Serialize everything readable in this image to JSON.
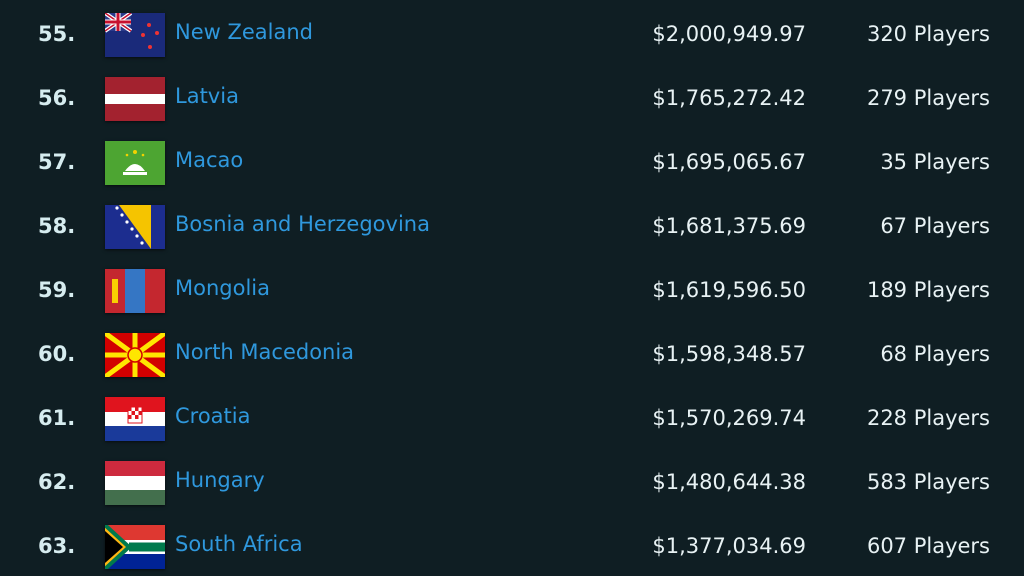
{
  "rows": [
    {
      "rank": "55.",
      "country": "New Zealand",
      "flag": "nz",
      "earnings": "$2,000,949.97",
      "players": "320 Players"
    },
    {
      "rank": "56.",
      "country": "Latvia",
      "flag": "lv",
      "earnings": "$1,765,272.42",
      "players": "279 Players"
    },
    {
      "rank": "57.",
      "country": "Macao",
      "flag": "mo",
      "earnings": "$1,695,065.67",
      "players": "35 Players"
    },
    {
      "rank": "58.",
      "country": "Bosnia and Herzegovina",
      "flag": "ba",
      "earnings": "$1,681,375.69",
      "players": "67 Players"
    },
    {
      "rank": "59.",
      "country": "Mongolia",
      "flag": "mn",
      "earnings": "$1,619,596.50",
      "players": "189 Players"
    },
    {
      "rank": "60.",
      "country": "North Macedonia",
      "flag": "mk",
      "earnings": "$1,598,348.57",
      "players": "68 Players"
    },
    {
      "rank": "61.",
      "country": "Croatia",
      "flag": "hr",
      "earnings": "$1,570,269.74",
      "players": "228 Players"
    },
    {
      "rank": "62.",
      "country": "Hungary",
      "flag": "hu",
      "earnings": "$1,480,644.38",
      "players": "583 Players"
    },
    {
      "rank": "63.",
      "country": "South Africa",
      "flag": "za",
      "earnings": "$1,377,034.69",
      "players": "607 Players"
    }
  ]
}
